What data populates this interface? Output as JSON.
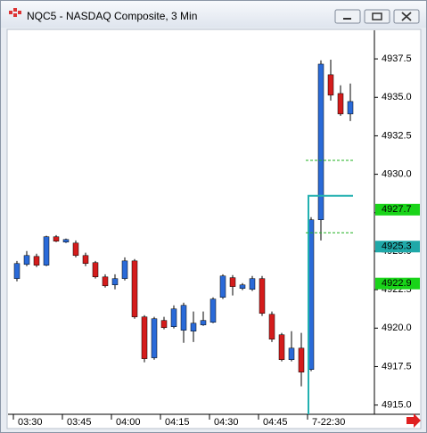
{
  "chart_data": {
    "type": "candlestick",
    "title": "NQC5 - NASDAQ Composite, 3 Min",
    "categories": [
      "03:30",
      null,
      null,
      null,
      null,
      "03:45",
      null,
      null,
      null,
      null,
      "04:00",
      null,
      null,
      null,
      null,
      "04:15",
      null,
      null,
      null,
      null,
      "04:30",
      null,
      null,
      null,
      null,
      "04:45",
      null,
      null,
      null,
      null,
      "7-22:30",
      null,
      null,
      null,
      null
    ],
    "open": [
      4923.22,
      4924.14,
      4924.66,
      4924.09,
      4925.94,
      4925.59,
      4925.53,
      4924.72,
      4924.26,
      4923.33,
      4922.81,
      4923.22,
      4924.37,
      4920.73,
      4918.07,
      4920.5,
      4920.09,
      4919.86,
      4919.8,
      4920.21,
      4920.38,
      4922.0,
      4923.28,
      4922.58,
      4922.52,
      4923.22,
      4920.9,
      4919.57,
      4917.95,
      4918.7,
      4917.31,
      4927.04,
      4936.47,
      4935.25,
      4933.92
    ],
    "high": [
      4924.37,
      4925.01,
      4924.84,
      4926.0,
      4926.05,
      4925.82,
      4925.7,
      4924.9,
      4924.37,
      4923.5,
      4923.5,
      4924.6,
      4924.49,
      4920.84,
      4920.73,
      4920.73,
      4921.48,
      4921.65,
      4921.08,
      4921.08,
      4922.0,
      4923.5,
      4923.45,
      4922.93,
      4923.39,
      4923.39,
      4921.08,
      4919.69,
      4919.8,
      4919.69,
      4927.21,
      4937.4,
      4937.45,
      4935.78,
      4935.9
    ],
    "low": [
      4923.04,
      4924.03,
      4923.97,
      4924.03,
      4925.59,
      4925.53,
      4924.6,
      4924.03,
      4923.22,
      4922.64,
      4922.52,
      4923.1,
      4920.61,
      4917.78,
      4917.95,
      4919.92,
      4919.98,
      4919.05,
      4919.1,
      4920.15,
      4920.32,
      4921.89,
      4922.12,
      4922.47,
      4922.41,
      4920.79,
      4919.1,
      4917.84,
      4917.84,
      4916.22,
      4917.2,
      4925.7,
      4934.79,
      4933.8,
      4933.46
    ],
    "close": [
      4924.2,
      4924.72,
      4924.09,
      4925.94,
      4925.65,
      4925.76,
      4924.72,
      4924.2,
      4923.33,
      4922.75,
      4923.22,
      4924.37,
      4920.73,
      4918.01,
      4920.61,
      4920.03,
      4921.25,
      4921.48,
      4920.32,
      4920.5,
      4921.89,
      4923.39,
      4922.7,
      4922.81,
      4923.22,
      4920.96,
      4919.28,
      4917.95,
      4918.7,
      4917.14,
      4927.04,
      4937.16,
      4935.14,
      4933.92,
      4934.73
    ],
    "up_color": "#2a6ad8",
    "down_color": "#d41c1c",
    "ylim": [
      4914.4,
      4939.3
    ],
    "yticks": [
      {
        "value": 4915,
        "label": "4915.0"
      },
      {
        "value": 4917.5,
        "label": "4917.5"
      },
      {
        "value": 4920,
        "label": "4920.0"
      },
      {
        "value": 4922.5,
        "label": "4922.5"
      },
      {
        "value": 4925,
        "label": "4925.0"
      },
      {
        "value": 4927.5,
        "label": "4927.5"
      },
      {
        "value": 4930,
        "label": "4930.0"
      },
      {
        "value": 4932.5,
        "label": "4932.5"
      },
      {
        "value": 4935,
        "label": "4935.0"
      },
      {
        "value": 4937.5,
        "label": "4937.5"
      }
    ],
    "levels": [
      {
        "value": 4928.6,
        "color": "#22b0b0",
        "dashed": false
      },
      {
        "value": 4930.9,
        "color": "#1fb01f",
        "dashed": true
      },
      {
        "value": 4926.2,
        "color": "#1fb01f",
        "dashed": true
      }
    ],
    "price_labels": [
      {
        "value": 4927.7,
        "color": "#19d419"
      },
      {
        "value": 4925.3,
        "color": "#1fa8a8"
      },
      {
        "value": 4922.9,
        "color": "#19d419"
      }
    ]
  }
}
